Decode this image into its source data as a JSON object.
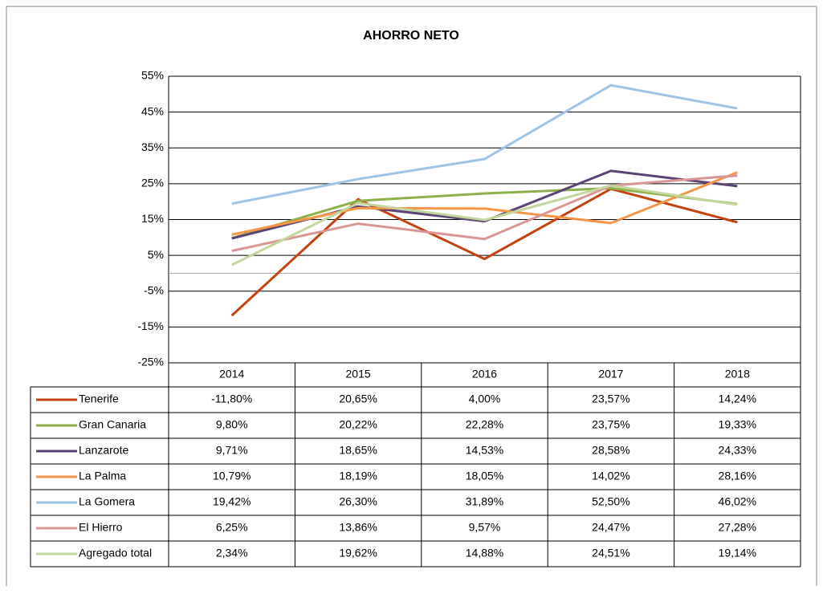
{
  "chart_data": {
    "type": "line",
    "title": "AHORRO NETO",
    "categories": [
      "2014",
      "2015",
      "2016",
      "2017",
      "2018"
    ],
    "ylim": [
      -25,
      55
    ],
    "yticks": [
      {
        "value": -25,
        "label": "-25%"
      },
      {
        "value": -15,
        "label": "-15%"
      },
      {
        "value": -5,
        "label": "-5%"
      },
      {
        "value": 5,
        "label": "5%"
      },
      {
        "value": 15,
        "label": "15%"
      },
      {
        "value": 25,
        "label": "25%"
      },
      {
        "value": 35,
        "label": "35%"
      },
      {
        "value": 45,
        "label": "45%"
      },
      {
        "value": 55,
        "label": "55%"
      }
    ],
    "grid": true,
    "series": [
      {
        "name": "Tenerife",
        "color": "#c4420f",
        "values": [
          -11.8,
          20.65,
          4.0,
          23.57,
          14.24
        ],
        "value_labels": [
          "-11,80%",
          "20,65%",
          "4,00%",
          "23,57%",
          "14,24%"
        ]
      },
      {
        "name": "Gran Canaria",
        "color": "#8db14a",
        "values": [
          9.8,
          20.22,
          22.28,
          23.75,
          19.33
        ],
        "value_labels": [
          "9,80%",
          "20,22%",
          "22,28%",
          "23,75%",
          "19,33%"
        ]
      },
      {
        "name": "Lanzarote",
        "color": "#5b4374",
        "values": [
          9.71,
          18.65,
          14.53,
          28.58,
          24.33
        ],
        "value_labels": [
          "9,71%",
          "18,65%",
          "14,53%",
          "28,58%",
          "24,33%"
        ]
      },
      {
        "name": "La Palma",
        "color": "#f79646",
        "values": [
          10.79,
          18.19,
          18.05,
          14.02,
          28.16
        ],
        "value_labels": [
          "10,79%",
          "18,19%",
          "18,05%",
          "14,02%",
          "28,16%"
        ]
      },
      {
        "name": "La Gomera",
        "color": "#9dc3e6",
        "values": [
          19.42,
          26.3,
          31.89,
          52.5,
          46.02
        ],
        "value_labels": [
          "19,42%",
          "26,30%",
          "31,89%",
          "52,50%",
          "46,02%"
        ]
      },
      {
        "name": "El Hierro",
        "color": "#d99694",
        "values": [
          6.25,
          13.86,
          9.57,
          24.47,
          27.28
        ],
        "value_labels": [
          "6,25%",
          "13,86%",
          "9,57%",
          "24,47%",
          "27,28%"
        ]
      },
      {
        "name": "Agregado total",
        "color": "#c3d69b",
        "values": [
          2.34,
          19.62,
          14.88,
          24.51,
          19.14
        ],
        "value_labels": [
          "2,34%",
          "19,62%",
          "14,88%",
          "24,51%",
          "19,14%"
        ]
      }
    ]
  }
}
